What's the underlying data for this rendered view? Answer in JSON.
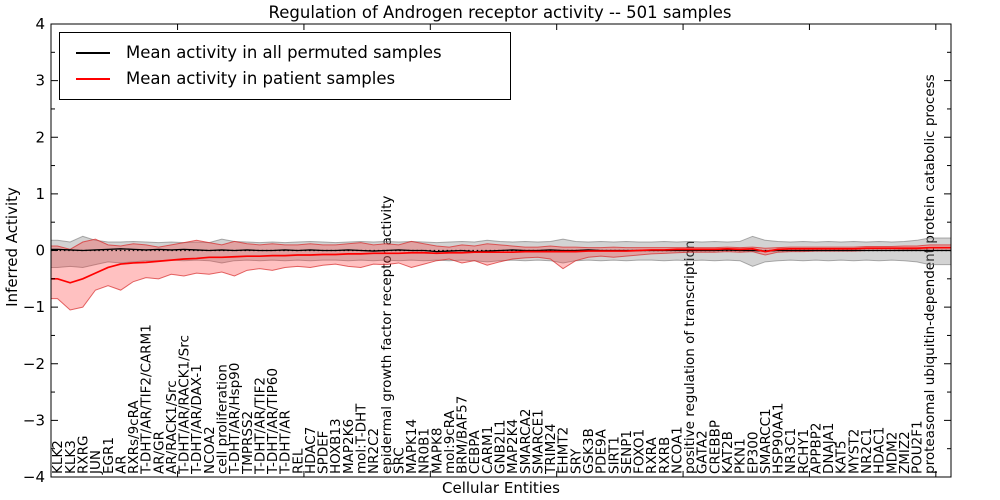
{
  "chart_data": {
    "type": "line",
    "title": "Regulation of Androgen receptor activity -- 501 samples",
    "xlabel": "Cellular Entities",
    "ylabel": "Inferred Activity",
    "ylim": [
      -4,
      4
    ],
    "yticks": [
      4,
      3,
      2,
      1,
      0,
      -1,
      -2,
      -3,
      -4
    ],
    "ytick_labels": [
      "4",
      "3",
      "2",
      "1",
      "0",
      "−1",
      "−2",
      "−3",
      "−4"
    ],
    "grid": false,
    "legend_position": "upper left",
    "zero_line": {
      "style": "dotted",
      "color": "#000000",
      "y": 0
    },
    "categories": [
      "KLK2",
      "KLK3",
      "RXRG",
      "JUN",
      "EGR1",
      "AR",
      "RXRs/9cRA",
      "T-DHT/AR/TIF2/CARM1",
      "AR/GR",
      "AR/RACK1/Src",
      "T-DHT/AR/RACK1/Src",
      "T-DHT/AR/DAX-1",
      "NCOA2",
      "cell proliferation",
      "T-DHT/AR/Hsp90",
      "TMPRSS2",
      "T-DHT/AR/TIF2",
      "T-DHT/AR/TIP60",
      "T-DHT/AR",
      "REL",
      "HDAC7",
      "SPDEF",
      "HOXB13",
      "MAP2K6",
      "mol:T-DHT",
      "NR2C2",
      "epidermal growth factor receptor activity",
      "SRC",
      "MAPK14",
      "NR0B1",
      "MAPK8",
      "mol:9cRA",
      "BRM/BAF57",
      "CEBPA",
      "CARM1",
      "GNB2L1",
      "MAP2K4",
      "SMARCA2",
      "SMARCE1",
      "TRIM24",
      "EHMT2",
      "SRY",
      "GSK3B",
      "PDE9A",
      "SIRT1",
      "SENP1",
      "FOXO1",
      "RXRA",
      "RXRB",
      "NCOA1",
      "positive regulation of transcription",
      "GATA2",
      "CREBBP",
      "KAT2B",
      "PKN1",
      "EP300",
      "SMARCC1",
      "HSP90AA1",
      "NR3C1",
      "RCHY1",
      "APPBP2",
      "DNAJA1",
      "KAT5",
      "MYST2",
      "NR2C1",
      "HDAC1",
      "MDM2",
      "ZMIZ2",
      "POU2F1",
      "proteasomal ubiquitin-dependent protein catabolic process"
    ],
    "series": [
      {
        "name": "Mean activity in all permuted samples",
        "color": "#000000",
        "band_fill": "rgba(130,130,130,0.35)",
        "band_edge": "rgba(110,110,110,0.55)",
        "values": [
          0.02,
          0.01,
          0,
          0.01,
          0.02,
          0.03,
          0.02,
          0.01,
          0.02,
          0.01,
          0.02,
          0.01,
          0,
          0.01,
          0,
          0.01,
          0,
          0,
          0.01,
          0,
          0.01,
          0,
          0,
          0.01,
          0,
          -0.01,
          0,
          0.01,
          0,
          0,
          -0.02,
          -0.01,
          0,
          -0.02,
          -0.01,
          0,
          0.01,
          0,
          0,
          0.01,
          0,
          0,
          0.01,
          0,
          0,
          0,
          0,
          0,
          0,
          0,
          0,
          0,
          0,
          0.01,
          0,
          0,
          -0.01,
          0,
          0,
          0,
          0,
          0,
          0,
          0,
          0,
          0,
          0,
          0,
          0,
          0
        ],
        "band_upper": [
          0.18,
          0.15,
          0.25,
          0.18,
          0.15,
          0.15,
          0.16,
          0.15,
          0.14,
          0.15,
          0.14,
          0.15,
          0.14,
          0.2,
          0.16,
          0.15,
          0.14,
          0.15,
          0.14,
          0.15,
          0.16,
          0.15,
          0.14,
          0.15,
          0.16,
          0.15,
          0.16,
          0.15,
          0.16,
          0.15,
          0.14,
          0.15,
          0.16,
          0.15,
          0.18,
          0.16,
          0.15,
          0.16,
          0.15,
          0.16,
          0.2,
          0.16,
          0.15,
          0.16,
          0.15,
          0.16,
          0.15,
          0.15,
          0.16,
          0.15,
          0.16,
          0.15,
          0.16,
          0.15,
          0.16,
          0.25,
          0.18,
          0.16,
          0.15,
          0.16,
          0.15,
          0.16,
          0.15,
          0.16,
          0.15,
          0.16,
          0.15,
          0.16,
          0.18,
          0.22
        ],
        "band_lower": [
          -0.3,
          -0.28,
          -0.3,
          -0.25,
          -0.2,
          -0.22,
          -0.2,
          -0.18,
          -0.18,
          -0.17,
          -0.18,
          -0.17,
          -0.18,
          -0.22,
          -0.18,
          -0.17,
          -0.18,
          -0.17,
          -0.18,
          -0.17,
          -0.18,
          -0.17,
          -0.17,
          -0.18,
          -0.17,
          -0.18,
          -0.17,
          -0.18,
          -0.17,
          -0.18,
          -0.17,
          -0.18,
          -0.17,
          -0.18,
          -0.2,
          -0.18,
          -0.17,
          -0.18,
          -0.17,
          -0.18,
          -0.22,
          -0.18,
          -0.17,
          -0.18,
          -0.17,
          -0.18,
          -0.17,
          -0.17,
          -0.18,
          -0.17,
          -0.18,
          -0.17,
          -0.18,
          -0.17,
          -0.18,
          -0.28,
          -0.2,
          -0.18,
          -0.17,
          -0.18,
          -0.17,
          -0.18,
          -0.17,
          -0.18,
          -0.17,
          -0.18,
          -0.17,
          -0.18,
          -0.2,
          -0.25
        ]
      },
      {
        "name": "Mean activity in patient samples",
        "color": "#ff0000",
        "band_fill": "rgba(255,50,50,0.3)",
        "band_edge": "rgba(215,40,40,0.7)",
        "values": [
          -0.5,
          -0.57,
          -0.5,
          -0.4,
          -0.3,
          -0.24,
          -0.22,
          -0.21,
          -0.19,
          -0.17,
          -0.15,
          -0.14,
          -0.12,
          -0.12,
          -0.11,
          -0.1,
          -0.1,
          -0.09,
          -0.09,
          -0.08,
          -0.08,
          -0.07,
          -0.07,
          -0.06,
          -0.06,
          -0.05,
          -0.05,
          -0.05,
          -0.04,
          -0.04,
          -0.05,
          -0.04,
          -0.04,
          -0.03,
          -0.03,
          -0.03,
          -0.03,
          -0.02,
          -0.02,
          -0.02,
          -0.02,
          -0.02,
          -0.01,
          -0.01,
          -0.01,
          -0.01,
          0,
          0.01,
          0.01,
          0.02,
          0.02,
          0.02,
          0.02,
          0.03,
          0.02,
          0.03,
          -0.02,
          0.02,
          0.03,
          0.03,
          0.03,
          0.03,
          0.03,
          0.03,
          0.04,
          0.04,
          0.04,
          0.04,
          0.04,
          0.05
        ],
        "band_upper": [
          0.08,
          0.02,
          0.15,
          0.2,
          0.1,
          0.08,
          0.12,
          0.1,
          0.06,
          0.1,
          0.14,
          0.18,
          0.14,
          0.1,
          0.16,
          0.12,
          0.1,
          0.12,
          0.1,
          0.1,
          0.12,
          0.1,
          0.1,
          0.12,
          0.14,
          0.1,
          0.12,
          0.1,
          0.16,
          0.12,
          0.08,
          0.06,
          0.1,
          0.08,
          0.12,
          0.1,
          0.08,
          0.06,
          0.06,
          0.08,
          0.06,
          0.06,
          0.05,
          0.05,
          0.06,
          0.05,
          0.05,
          0.05,
          0.05,
          0.05,
          0.05,
          0.05,
          0.05,
          0.06,
          0.05,
          0.06,
          0.04,
          0.05,
          0.06,
          0.06,
          0.06,
          0.06,
          0.06,
          0.06,
          0.07,
          0.07,
          0.07,
          0.08,
          0.08,
          0.1
        ],
        "band_lower": [
          -0.85,
          -1.05,
          -1,
          -0.7,
          -0.62,
          -0.7,
          -0.55,
          -0.48,
          -0.5,
          -0.42,
          -0.45,
          -0.4,
          -0.42,
          -0.38,
          -0.45,
          -0.35,
          -0.32,
          -0.35,
          -0.3,
          -0.28,
          -0.3,
          -0.26,
          -0.24,
          -0.28,
          -0.3,
          -0.24,
          -0.25,
          -0.22,
          -0.3,
          -0.24,
          -0.18,
          -0.15,
          -0.22,
          -0.18,
          -0.26,
          -0.2,
          -0.15,
          -0.13,
          -0.12,
          -0.15,
          -0.32,
          -0.18,
          -0.12,
          -0.1,
          -0.12,
          -0.1,
          -0.08,
          -0.06,
          -0.05,
          -0.04,
          -0.03,
          -0.03,
          -0.03,
          -0.02,
          -0.03,
          -0.02,
          -0.08,
          -0.03,
          -0.02,
          -0.02,
          -0.01,
          -0.01,
          -0.01,
          -0.01,
          0,
          0,
          0,
          0.01,
          0.01,
          0
        ]
      }
    ]
  }
}
